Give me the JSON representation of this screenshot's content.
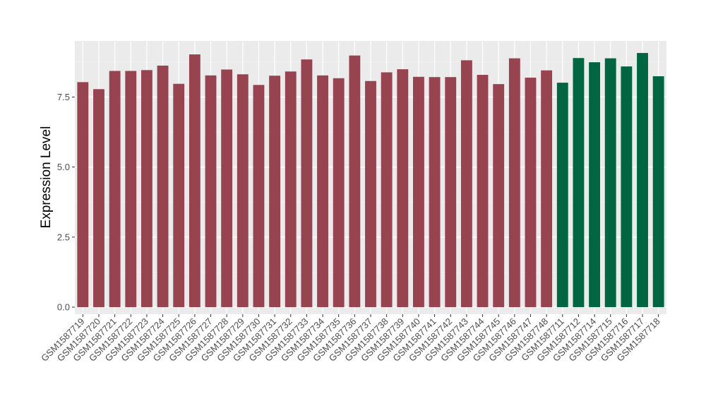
{
  "chart_data": {
    "type": "bar",
    "title": "",
    "xlabel": "",
    "ylabel": "Expression Level",
    "ylim": [
      -0.25,
      9.5
    ],
    "yticks": [
      0.0,
      2.5,
      5.0,
      7.5
    ],
    "ytick_labels": [
      "0.0",
      "2.5",
      "5.0",
      "7.5"
    ],
    "grid": true,
    "legend": "none",
    "background": "#ebebeb",
    "categories": [
      "GSM1587719",
      "GSM1587720",
      "GSM1587721",
      "GSM1587722",
      "GSM1587723",
      "GSM1587724",
      "GSM1587725",
      "GSM1587726",
      "GSM1587727",
      "GSM1587728",
      "GSM1587729",
      "GSM1587730",
      "GSM1587731",
      "GSM1587732",
      "GSM1587733",
      "GSM1587734",
      "GSM1587735",
      "GSM1587736",
      "GSM1587737",
      "GSM1587738",
      "GSM1587739",
      "GSM1587740",
      "GSM1587741",
      "GSM1587742",
      "GSM1587743",
      "GSM1587744",
      "GSM1587745",
      "GSM1587746",
      "GSM1587747",
      "GSM1587748",
      "GSM1587711",
      "GSM1587712",
      "GSM1587714",
      "GSM1587715",
      "GSM1587716",
      "GSM1587717",
      "GSM1587718"
    ],
    "values": [
      8.03,
      7.78,
      8.43,
      8.43,
      8.46,
      8.62,
      7.97,
      9.02,
      8.27,
      8.48,
      8.31,
      7.93,
      8.26,
      8.41,
      8.84,
      8.27,
      8.17,
      8.98,
      8.07,
      8.38,
      8.49,
      8.22,
      8.21,
      8.21,
      8.81,
      8.29,
      7.96,
      8.88,
      8.19,
      8.45,
      8.01,
      8.89,
      8.74,
      8.88,
      8.59,
      9.07,
      8.24
    ],
    "groups": [
      "a",
      "a",
      "a",
      "a",
      "a",
      "a",
      "a",
      "a",
      "a",
      "a",
      "a",
      "a",
      "a",
      "a",
      "a",
      "a",
      "a",
      "a",
      "a",
      "a",
      "a",
      "a",
      "a",
      "a",
      "a",
      "a",
      "a",
      "a",
      "a",
      "a",
      "b",
      "b",
      "b",
      "b",
      "b",
      "b",
      "b"
    ],
    "group_colors": {
      "a": "#974350",
      "b": "#006641"
    }
  }
}
